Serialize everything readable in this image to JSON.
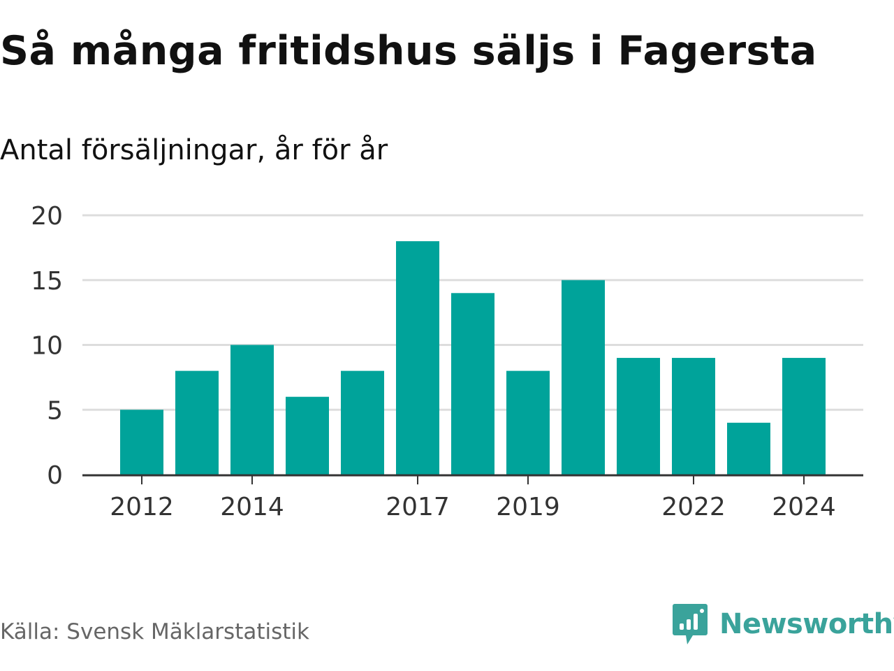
{
  "title": "Så många fritidshus säljs i Fagersta",
  "subtitle": "Antal försäljningar, år för år",
  "source": "Källa: Svensk Mäklarstatistik",
  "brand": {
    "name": "Newsworthy",
    "icon": "newsworthy-bar-chart-icon",
    "color": "#3aa39b"
  },
  "chart_data": {
    "type": "bar",
    "title": "Så många fritidshus säljs i Fagersta",
    "subtitle": "Antal försäljningar, år för år",
    "categories": [
      "2012",
      "2013",
      "2014",
      "2015",
      "2016",
      "2017",
      "2018",
      "2019",
      "2020",
      "2021",
      "2022",
      "2023",
      "2024"
    ],
    "values": [
      5,
      8,
      10,
      6,
      8,
      18,
      14,
      8,
      15,
      9,
      9,
      4,
      9
    ],
    "x_tick_labels": [
      "2012",
      "2014",
      "2017",
      "2019",
      "2022",
      "2024"
    ],
    "y_ticks": [
      0,
      5,
      10,
      15,
      20
    ],
    "ylim": [
      0,
      20
    ],
    "grid": "horizontal",
    "bar_color": "#00a39a"
  }
}
